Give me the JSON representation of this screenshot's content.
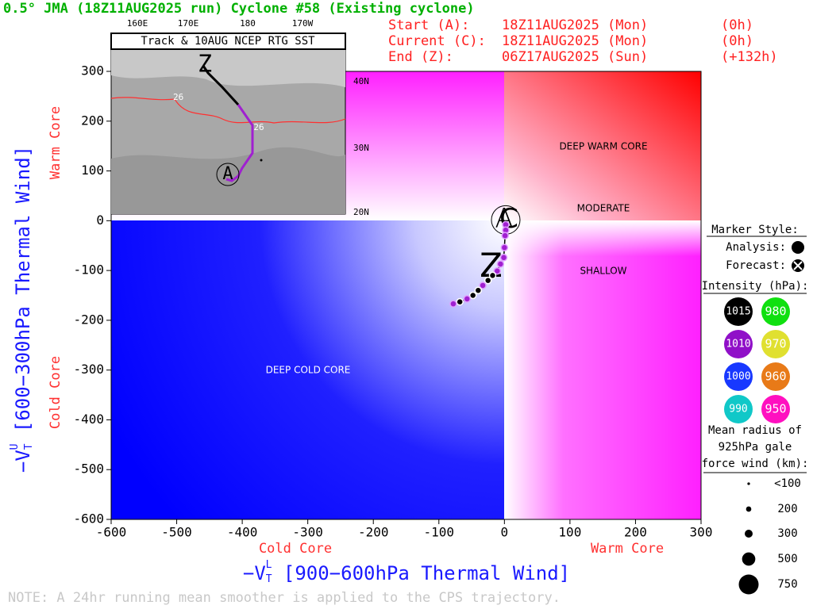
{
  "chart_data": {
    "type": "phase",
    "title": "0.5° JMA (18Z11AUG2025 run) Cyclone #58 (Existing cyclone)",
    "header_rows": [
      [
        "Start (A):",
        "18Z11AUG2025 (Mon)",
        "(0h)"
      ],
      [
        "Current (C):",
        "18Z11AUG2025 (Mon)",
        "(0h)"
      ],
      [
        "End (Z):",
        "06Z17AUG2025 (Sun)",
        "(+132h)"
      ]
    ],
    "marker_labels": {
      "start": "A",
      "current": "C",
      "end": "Z"
    },
    "x_label": {
      "main": "−V",
      "sub": "T",
      "sup": "L",
      "rest": " [900−600hPa Thermal Wind]"
    },
    "y_label": {
      "main": "−V",
      "sub": "T",
      "sup": "U",
      "rest": " [600−300hPa Thermal Wind]"
    },
    "x_side_labels": [
      "Cold Core",
      "Warm Core"
    ],
    "y_side_labels": [
      "Cold Core",
      "Warm Core"
    ],
    "quadrant_labels": [
      "DEEP WARM CORE",
      "MODERATE",
      "SHALLOW",
      "DEEP COLD CORE"
    ],
    "xlim": [
      -600,
      300
    ],
    "ylim": [
      -600,
      300
    ],
    "xticks": [
      -600,
      -500,
      -400,
      -300,
      -200,
      -100,
      0,
      100,
      200,
      300
    ],
    "yticks": [
      -600,
      -500,
      -400,
      -300,
      -200,
      -100,
      0,
      100,
      200,
      300
    ],
    "series": [
      {
        "name": "Track",
        "x": [
          2,
          2,
          1,
          0,
          -1,
          -6,
          -11,
          -18,
          -25,
          -33,
          -40,
          -48,
          -57,
          -68,
          -78
        ],
        "values": [
          -8,
          -19,
          -30,
          -54,
          -74,
          -87,
          -101,
          -110,
          -120,
          -130,
          -140,
          -150,
          -157,
          -163,
          -167
        ],
        "colors": [
          "#a020d0",
          "#a020d0",
          "#a020d0",
          "#a020d0",
          "#a020d0",
          "#a020d0",
          "#a020d0",
          "#000000",
          "#000000",
          "#a020d0",
          "#000000",
          "#000000",
          "#a020d0",
          "#000000",
          "#a020d0"
        ]
      }
    ],
    "note": "NOTE:  A 24hr running mean smoother is applied to the CPS trajectory.",
    "inset": {
      "title": "Track & 10AUG NCEP RTG SST",
      "lon_labels": [
        "160E",
        "170E",
        "180",
        "170W"
      ],
      "lat_labels": [
        "40N",
        "30N",
        "20N"
      ],
      "contour_labels": [
        "26",
        "26"
      ]
    },
    "legend": {
      "marker_title": "Marker Style:",
      "analysis": "Analysis:",
      "forecast": "Forecast:",
      "intensity_title": "Intensity (hPa):",
      "intensity": [
        {
          "value": 1015,
          "color": "#000000"
        },
        {
          "value": 980,
          "color": "#10e010"
        },
        {
          "value": 1010,
          "color": "#9010c8"
        },
        {
          "value": 970,
          "color": "#e0e030"
        },
        {
          "value": 1000,
          "color": "#1838ff"
        },
        {
          "value": 960,
          "color": "#e87a18"
        },
        {
          "value": 990,
          "color": "#10c8c8"
        },
        {
          "value": 950,
          "color": "#ff10c0"
        }
      ],
      "radius_title": [
        "Mean radius of",
        "925hPa gale",
        "force wind (km):"
      ],
      "radius": [
        {
          "value": 100,
          "label": "<100"
        },
        200,
        300,
        500,
        750
      ]
    }
  }
}
